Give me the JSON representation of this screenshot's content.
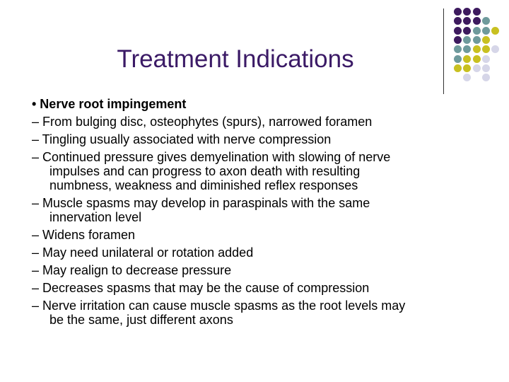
{
  "title": "Treatment Indications",
  "colors": {
    "purple": "#3d1a5e",
    "teal": "#6e9a9c",
    "yellow": "#c8c020",
    "lavender": "#d6d6e8",
    "title": "#3b1a66"
  },
  "dot_grid": [
    "PPP",
    "PPPT",
    "PPTTY",
    "PTTY",
    "TTYYL",
    "TYYL",
    "YYLL",
    "_L_L"
  ],
  "body": [
    {
      "text": "• Nerve root impingement",
      "bold": true
    },
    {
      "text": "– From bulging disc, osteophytes (spurs), narrowed foramen"
    },
    {
      "text": "– Tingling usually associated with nerve compression"
    },
    {
      "text": "– Continued pressure gives demyelination with slowing of nerve"
    },
    {
      "text": "impulses and can progress to axon death with resulting",
      "cont": true
    },
    {
      "text": "numbness, weakness and diminished reflex responses",
      "cont": true
    },
    {
      "text": "– Muscle spasms may develop in paraspinals with the same"
    },
    {
      "text": "innervation level",
      "cont": true
    },
    {
      "text": "– Widens foramen"
    },
    {
      "text": "– May need unilateral or rotation added"
    },
    {
      "text": "– May realign to decrease pressure"
    },
    {
      "text": "– Decreases spasms that may be the cause of compression"
    },
    {
      "text": "– Nerve irritation can cause muscle spasms as the root levels may"
    },
    {
      "text": "be the same, just different axons",
      "cont": true
    }
  ]
}
